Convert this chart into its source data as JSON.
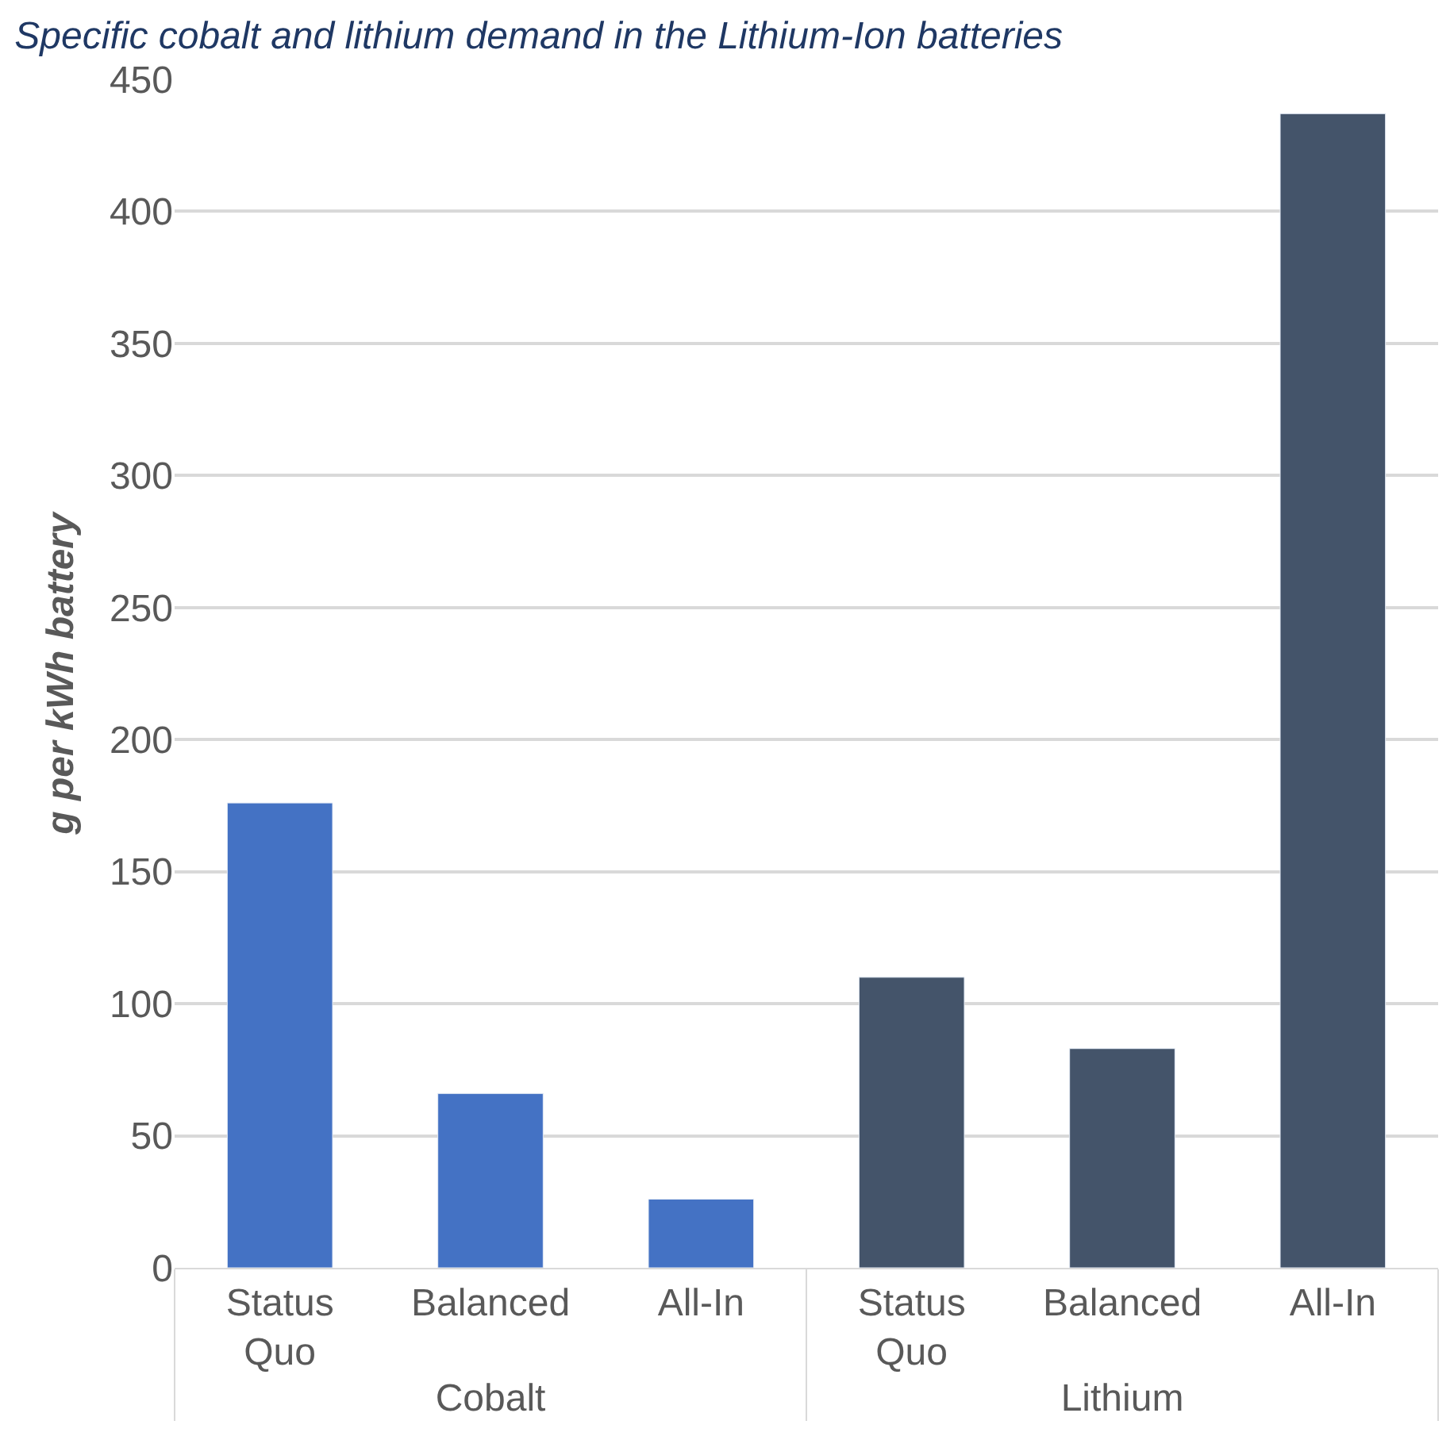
{
  "chart_data": {
    "type": "bar",
    "title": "Specific cobalt and lithium demand in the Lithium-Ion batteries",
    "ylabel": "g per kWh battery",
    "categories": [
      "Status Quo",
      "Balanced",
      "All-In",
      "Status Quo",
      "Balanced",
      "All-In"
    ],
    "series": [
      {
        "name": "Cobalt",
        "color": "#4472c4",
        "values": [
          176,
          66,
          26,
          null,
          null,
          null
        ]
      },
      {
        "name": "Lithium",
        "color": "#44546a",
        "values": [
          null,
          null,
          null,
          110,
          83,
          437
        ]
      }
    ],
    "ylim": [
      0,
      450
    ],
    "yticks": [
      0,
      50,
      100,
      150,
      200,
      250,
      300,
      350,
      400,
      450
    ],
    "grid": "y",
    "legend": false
  }
}
